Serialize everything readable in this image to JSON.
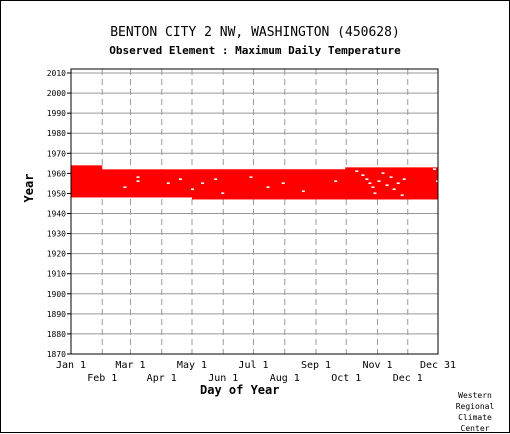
{
  "chart_data": {
    "type": "heatmap",
    "title": "BENTON CITY 2 NW, WASHINGTON   (450628)",
    "subtitle": "Observed Element : Maximum Daily Temperature",
    "xlabel": "Day of Year",
    "ylabel": "Year",
    "ylim": [
      1870,
      2012
    ],
    "y_ticks": [
      1870,
      1880,
      1890,
      1900,
      1910,
      1920,
      1930,
      1940,
      1950,
      1960,
      1970,
      1980,
      1990,
      2000,
      2010
    ],
    "x_ticks_top": [
      {
        "label": "Jan 1",
        "day": 1
      },
      {
        "label": "Mar 1",
        "day": 60
      },
      {
        "label": "May 1",
        "day": 121
      },
      {
        "label": "Jul 1",
        "day": 182
      },
      {
        "label": "Sep 1",
        "day": 244
      },
      {
        "label": "Nov 1",
        "day": 305
      },
      {
        "label": "Dec 31",
        "day": 365
      }
    ],
    "x_ticks_bottom": [
      {
        "label": "Feb 1",
        "day": 32
      },
      {
        "label": "Apr 1",
        "day": 91
      },
      {
        "label": "Jun 1",
        "day": 152
      },
      {
        "label": "Aug 1",
        "day": 213
      },
      {
        "label": "Oct 1",
        "day": 274
      },
      {
        "label": "Dec 1",
        "day": 335
      }
    ],
    "grid": true,
    "data_color": "#ff0000",
    "observed_periods": [
      {
        "year_start": 1958,
        "year_end": 1964,
        "day_start": 1,
        "day_end": 32
      },
      {
        "year_start": 1948,
        "year_end": 1962,
        "day_start": 1,
        "day_end": 365
      },
      {
        "year_start": 1947,
        "year_end": 1962,
        "day_start": 121,
        "day_end": 338
      },
      {
        "year_start": 1947,
        "year_end": 1963,
        "day_start": 273,
        "day_end": 365
      }
    ],
    "missing_marks": [
      {
        "year": 1953,
        "day": 53
      },
      {
        "year": 1956,
        "day": 66
      },
      {
        "year": 1958,
        "day": 66
      },
      {
        "year": 1955,
        "day": 96
      },
      {
        "year": 1957,
        "day": 108
      },
      {
        "year": 1952,
        "day": 120
      },
      {
        "year": 1955,
        "day": 130
      },
      {
        "year": 1957,
        "day": 143
      },
      {
        "year": 1950,
        "day": 150
      },
      {
        "year": 1958,
        "day": 178
      },
      {
        "year": 1953,
        "day": 195
      },
      {
        "year": 1955,
        "day": 210
      },
      {
        "year": 1951,
        "day": 230
      },
      {
        "year": 1956,
        "day": 262
      },
      {
        "year": 1961,
        "day": 283
      },
      {
        "year": 1959,
        "day": 289
      },
      {
        "year": 1957,
        "day": 293
      },
      {
        "year": 1955,
        "day": 296
      },
      {
        "year": 1953,
        "day": 299
      },
      {
        "year": 1950,
        "day": 301
      },
      {
        "year": 1956,
        "day": 305
      },
      {
        "year": 1960,
        "day": 309
      },
      {
        "year": 1954,
        "day": 313
      },
      {
        "year": 1958,
        "day": 317
      },
      {
        "year": 1952,
        "day": 320
      },
      {
        "year": 1955,
        "day": 324
      },
      {
        "year": 1949,
        "day": 328
      },
      {
        "year": 1957,
        "day": 330
      },
      {
        "year": 1962,
        "day": 360
      },
      {
        "year": 1956,
        "day": 363
      }
    ]
  },
  "credit": "Western Regional Climate Center"
}
